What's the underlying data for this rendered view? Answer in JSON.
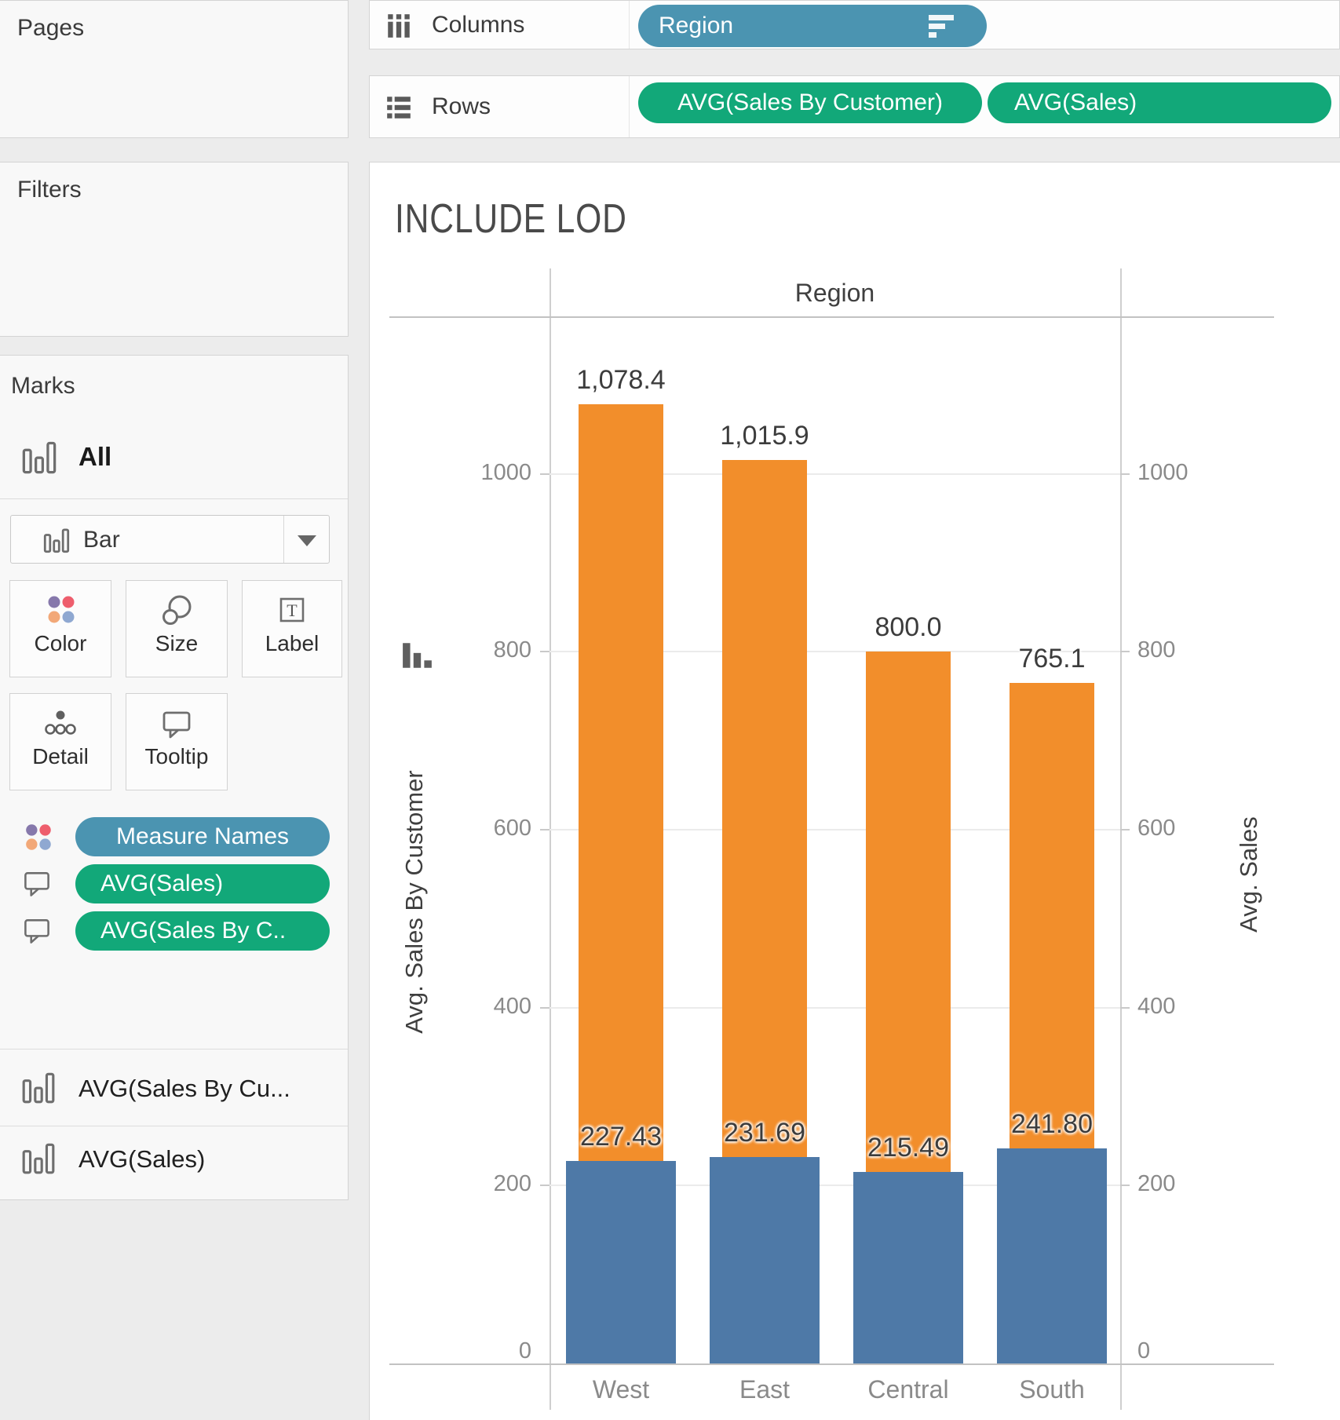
{
  "shelves": {
    "columns_label": "Columns",
    "rows_label": "Rows",
    "columns_pills": [
      {
        "label": "Region",
        "sorted": true
      }
    ],
    "rows_pills": [
      {
        "label": "AVG(Sales By Customer)"
      },
      {
        "label": "AVG(Sales)"
      }
    ]
  },
  "sidebar": {
    "pages_label": "Pages",
    "filters_label": "Filters",
    "marks": {
      "title": "Marks",
      "scope_label": "All",
      "mark_type": "Bar",
      "buttons": {
        "color": "Color",
        "size": "Size",
        "label": "Label",
        "detail": "Detail",
        "tooltip": "Tooltip"
      },
      "pills": [
        {
          "label": "Measure Names",
          "kind": "dimension",
          "icon": "color-icon"
        },
        {
          "label": "AVG(Sales)",
          "kind": "measure",
          "icon": "tooltip-icon"
        },
        {
          "label": "AVG(Sales By C..",
          "kind": "measure",
          "icon": "tooltip-icon"
        }
      ]
    },
    "mark_cards": [
      "AVG(Sales By Cu...",
      "AVG(Sales)"
    ]
  },
  "chart": {
    "title": "INCLUDE LOD",
    "column_header": "Region"
  },
  "chart_data": {
    "type": "bar",
    "categories": [
      "West",
      "East",
      "Central",
      "South"
    ],
    "series": [
      {
        "name": "AVG(Sales By Customer)",
        "axis": "left",
        "color": "#f28e2b",
        "values": [
          1078.4,
          1015.9,
          800.0,
          765.1
        ],
        "labels": [
          "1,078.4",
          "1,015.9",
          "800.0",
          "765.1"
        ]
      },
      {
        "name": "AVG(Sales)",
        "axis": "right",
        "color": "#4e79a7",
        "values": [
          227.43,
          231.69,
          215.49,
          241.8
        ],
        "labels": [
          "227.43",
          "231.69",
          "215.49",
          "241.80"
        ]
      }
    ],
    "y_ticks": [
      0,
      200,
      400,
      600,
      800,
      1000
    ],
    "ylim": [
      0,
      1140
    ],
    "column_header": "Region",
    "left_axis_title": "Avg. Sales By Customer",
    "right_axis_title": "Avg. Sales",
    "grid": true,
    "legend": "none"
  },
  "colors": {
    "dimension_pill": "#4b94b1",
    "measure_pill": "#12a879",
    "bar_orange": "#f28e2b",
    "bar_blue": "#4e79a7",
    "icon_dots": [
      "#8678ab",
      "#ee5e6d",
      "#f2a878",
      "#8fa8d1"
    ]
  }
}
